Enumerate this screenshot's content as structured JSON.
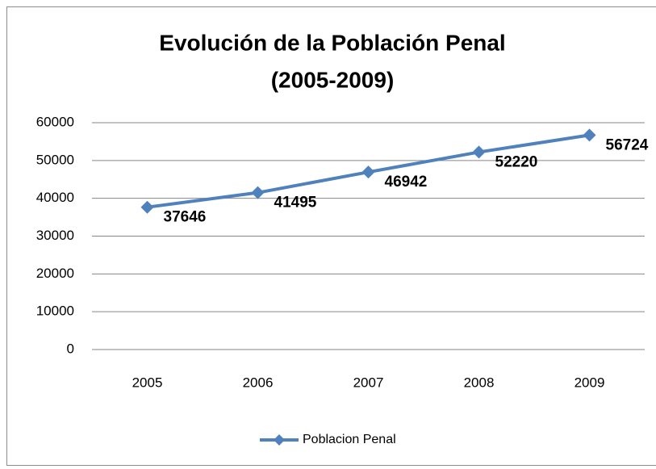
{
  "chart_data": {
    "type": "line",
    "title": [
      "Evolución de la Población Penal",
      "(2005-2009)"
    ],
    "categories": [
      "2005",
      "2006",
      "2007",
      "2008",
      "2009"
    ],
    "series": [
      {
        "name": "Poblacion Penal",
        "color": "#4f81bd",
        "values": [
          37646,
          41495,
          46942,
          52220,
          56724
        ]
      }
    ],
    "ylim": [
      0,
      60000
    ],
    "yticks": [
      0,
      10000,
      20000,
      30000,
      40000,
      50000,
      60000
    ],
    "grid": true,
    "legend": "bottom",
    "data_labels": true
  }
}
